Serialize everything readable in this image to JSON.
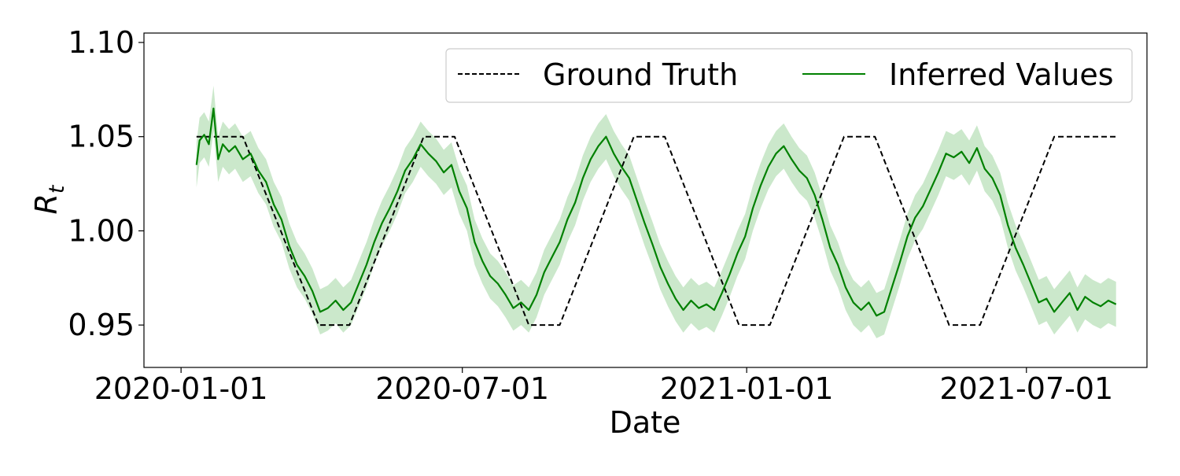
{
  "chart_data": {
    "type": "line",
    "title": "",
    "xlabel": "Date",
    "ylabel_base": "R",
    "ylabel_sub": "t",
    "ylim": [
      0.9275,
      1.105
    ],
    "xlim": [
      "2019-12-08",
      "2021-09-17"
    ],
    "x_ticks": [
      {
        "date": "2020-01-01",
        "label": "2020-01-01"
      },
      {
        "date": "2020-07-01",
        "label": "2020-07-01"
      },
      {
        "date": "2021-01-01",
        "label": "2021-01-01"
      },
      {
        "date": "2021-07-01",
        "label": "2021-07-01"
      }
    ],
    "y_ticks": [
      {
        "value": 0.95,
        "label": "0.95"
      },
      {
        "value": 1.0,
        "label": "1.00"
      },
      {
        "value": 1.05,
        "label": "1.05"
      },
      {
        "value": 1.1,
        "label": "1.10"
      }
    ],
    "grid": false,
    "legend_position": "top-right",
    "legend": [
      {
        "label": "Ground Truth",
        "style": "dashed",
        "color": "#000000"
      },
      {
        "label": "Inferred Values",
        "style": "solid",
        "color": "#008000"
      }
    ],
    "series": [
      {
        "name": "Ground Truth",
        "color": "#000000",
        "dash": true,
        "x": [
          "2020-01-11",
          "2020-02-10",
          "2020-03-30",
          "2020-04-19",
          "2020-06-06",
          "2020-06-26",
          "2020-08-13",
          "2020-09-02",
          "2020-10-20",
          "2020-11-09",
          "2020-12-27",
          "2021-01-16",
          "2021-03-05",
          "2021-03-25",
          "2021-05-12",
          "2021-06-01",
          "2021-07-19",
          "2021-08-28"
        ],
        "y": [
          1.05,
          1.05,
          0.95,
          0.95,
          1.05,
          1.05,
          0.95,
          0.95,
          1.05,
          1.05,
          0.95,
          0.95,
          1.05,
          1.05,
          0.95,
          0.95,
          1.05,
          1.05
        ]
      },
      {
        "name": "Inferred Values",
        "color": "#008000",
        "band_color": "#a8d8a8",
        "band_halfwidth": 0.012,
        "x": [
          "2020-01-11",
          "2020-01-13",
          "2020-01-16",
          "2020-01-19",
          "2020-01-22",
          "2020-01-25",
          "2020-01-28",
          "2020-02-01",
          "2020-02-05",
          "2020-02-10",
          "2020-02-15",
          "2020-02-20",
          "2020-02-25",
          "2020-03-01",
          "2020-03-06",
          "2020-03-11",
          "2020-03-16",
          "2020-03-21",
          "2020-03-26",
          "2020-03-31",
          "2020-04-05",
          "2020-04-10",
          "2020-04-15",
          "2020-04-20",
          "2020-04-25",
          "2020-04-30",
          "2020-05-05",
          "2020-05-10",
          "2020-05-15",
          "2020-05-20",
          "2020-05-25",
          "2020-05-30",
          "2020-06-04",
          "2020-06-09",
          "2020-06-14",
          "2020-06-19",
          "2020-06-24",
          "2020-06-29",
          "2020-07-04",
          "2020-07-09",
          "2020-07-14",
          "2020-07-19",
          "2020-07-24",
          "2020-07-29",
          "2020-08-03",
          "2020-08-08",
          "2020-08-13",
          "2020-08-18",
          "2020-08-23",
          "2020-08-28",
          "2020-09-02",
          "2020-09-07",
          "2020-09-12",
          "2020-09-17",
          "2020-09-22",
          "2020-09-27",
          "2020-10-02",
          "2020-10-07",
          "2020-10-12",
          "2020-10-17",
          "2020-10-22",
          "2020-10-27",
          "2020-11-01",
          "2020-11-06",
          "2020-11-11",
          "2020-11-16",
          "2020-11-21",
          "2020-11-26",
          "2020-12-01",
          "2020-12-06",
          "2020-12-11",
          "2020-12-16",
          "2020-12-21",
          "2020-12-26",
          "2020-12-31",
          "2021-01-05",
          "2021-01-10",
          "2021-01-15",
          "2021-01-20",
          "2021-01-25",
          "2021-01-30",
          "2021-02-04",
          "2021-02-09",
          "2021-02-14",
          "2021-02-19",
          "2021-02-24",
          "2021-03-01",
          "2021-03-06",
          "2021-03-11",
          "2021-03-16",
          "2021-03-21",
          "2021-03-26",
          "2021-03-31",
          "2021-04-05",
          "2021-04-10",
          "2021-04-15",
          "2021-04-20",
          "2021-04-25",
          "2021-04-30",
          "2021-05-05",
          "2021-05-10",
          "2021-05-15",
          "2021-05-20",
          "2021-05-25",
          "2021-05-30",
          "2021-06-04",
          "2021-06-09",
          "2021-06-14",
          "2021-06-19",
          "2021-06-24",
          "2021-06-29",
          "2021-07-04",
          "2021-07-09",
          "2021-07-14",
          "2021-07-19",
          "2021-07-24",
          "2021-07-29",
          "2021-08-03",
          "2021-08-08",
          "2021-08-13",
          "2021-08-18",
          "2021-08-23",
          "2021-08-28"
        ],
        "y": [
          1.035,
          1.048,
          1.051,
          1.046,
          1.065,
          1.038,
          1.046,
          1.042,
          1.045,
          1.038,
          1.041,
          1.032,
          1.026,
          1.014,
          1.006,
          0.992,
          0.982,
          0.976,
          0.968,
          0.957,
          0.959,
          0.963,
          0.958,
          0.962,
          0.972,
          0.982,
          0.994,
          1.004,
          1.012,
          1.021,
          1.032,
          1.038,
          1.046,
          1.041,
          1.037,
          1.031,
          1.035,
          1.021,
          1.012,
          0.994,
          0.984,
          0.976,
          0.972,
          0.966,
          0.959,
          0.962,
          0.958,
          0.966,
          0.978,
          0.986,
          0.994,
          1.006,
          1.015,
          1.028,
          1.038,
          1.045,
          1.05,
          1.041,
          1.034,
          1.028,
          1.016,
          1.004,
          0.993,
          0.981,
          0.972,
          0.964,
          0.958,
          0.963,
          0.959,
          0.961,
          0.958,
          0.967,
          0.977,
          0.988,
          0.997,
          1.012,
          1.024,
          1.034,
          1.041,
          1.045,
          1.038,
          1.032,
          1.028,
          1.019,
          1.006,
          0.991,
          0.982,
          0.97,
          0.962,
          0.958,
          0.962,
          0.955,
          0.957,
          0.97,
          0.983,
          0.997,
          1.007,
          1.013,
          1.022,
          1.031,
          1.041,
          1.039,
          1.042,
          1.036,
          1.044,
          1.033,
          1.028,
          1.019,
          1.003,
          0.991,
          0.982,
          0.972,
          0.962,
          0.964,
          0.957,
          0.962,
          0.967,
          0.958,
          0.965,
          0.962,
          0.96,
          0.963,
          0.961
        ]
      }
    ]
  }
}
